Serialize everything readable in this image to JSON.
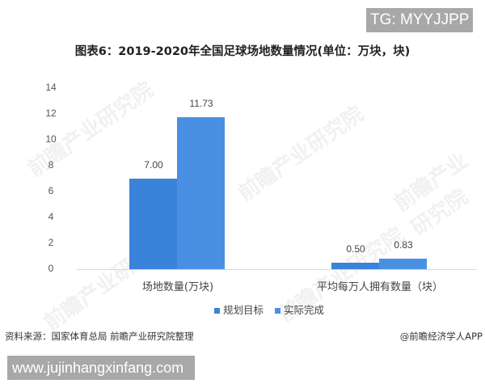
{
  "watermark_tag": "TG: MYYJJPP",
  "watermark_url": "www.jujinhangxinfang.com",
  "watermark_text": "前瞻产业研究院",
  "footer": {
    "source": "资料来源：国家体育总局 前瞻产业研究院整理",
    "credit": "@前瞻经济学人APP"
  },
  "chart_data": {
    "type": "bar",
    "title": "图表6：2019-2020年全国足球场地数量情况(单位：万块，块)",
    "categories": [
      "场地数量(万块)",
      "平均每万人拥有数量（块）"
    ],
    "series": [
      {
        "name": "规划目标",
        "values": [
          7.0,
          0.5
        ],
        "labels": [
          "7.00",
          "0.50"
        ],
        "color": "#3b82db"
      },
      {
        "name": "实际完成",
        "values": [
          11.73,
          0.83
        ],
        "labels": [
          "11.73",
          "0.83"
        ],
        "color": "#4a90e2"
      }
    ],
    "yticks": [
      "0",
      "2",
      "4",
      "6",
      "8",
      "10",
      "12",
      "14"
    ],
    "ylim": [
      0,
      14
    ],
    "xlabel": "",
    "ylabel": "",
    "grid": false,
    "legend_position": "bottom"
  }
}
